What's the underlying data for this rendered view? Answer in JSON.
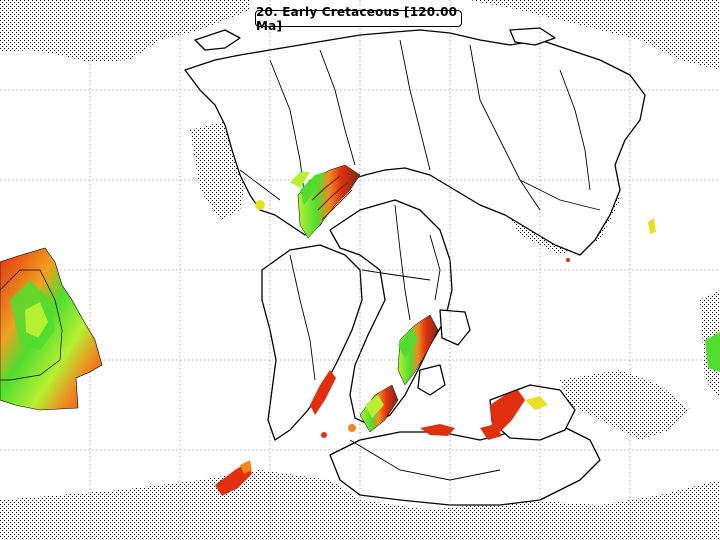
{
  "title": "20. Early Cretaceous [120.00 Ma]",
  "colors": {
    "ocean": "#ffffff",
    "land_outline": "#000000",
    "grid": "#777777",
    "stipple": "#000000",
    "lip_red": "#e03010",
    "lip_orange": "#f08a20",
    "lip_yellow": "#e8e020",
    "lip_green": "#50dd30",
    "lip_lime": "#b6f030",
    "lip_brown": "#7a2a10"
  },
  "icons": {
    "map": "paleogeographic-globe-projection"
  }
}
